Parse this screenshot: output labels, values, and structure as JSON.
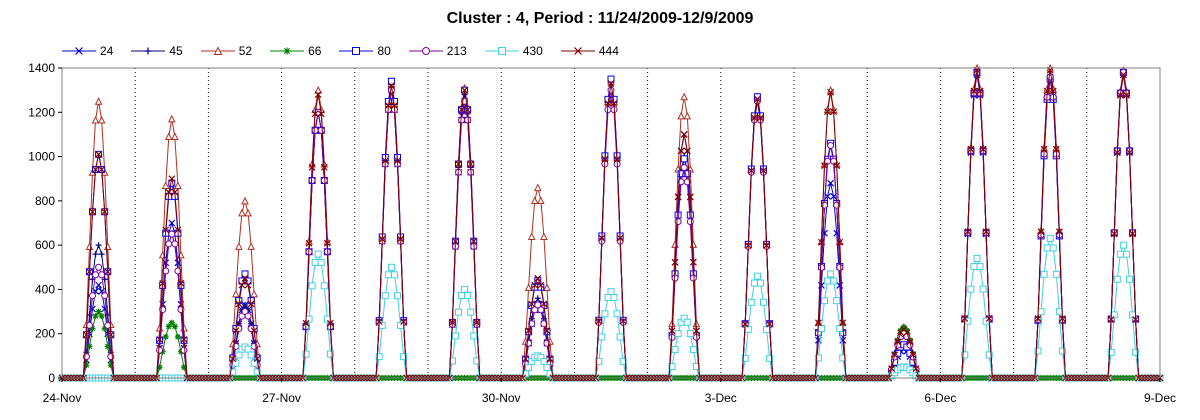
{
  "chart_data": {
    "type": "line",
    "title": "Cluster : 4, Period : 11/24/2009-12/9/2009",
    "xlabel": "",
    "ylabel": "",
    "ylim": [
      0,
      1400
    ],
    "yticks": [
      0,
      200,
      400,
      600,
      800,
      1000,
      1200,
      1400
    ],
    "x_range": [
      "2009-11-24",
      "2009-12-09"
    ],
    "xtick_labels": [
      "24-Nov",
      "27-Nov",
      "30-Nov",
      "3-Dec",
      "6-Dec",
      "9-Dec"
    ],
    "xtick_dates": [
      "2009-11-24",
      "2009-11-27",
      "2009-11-30",
      "2009-12-03",
      "2009-12-06",
      "2009-12-09"
    ],
    "grid": "dotted vertical lines at midnight of each day",
    "legend": "top-left, horizontal",
    "days": [
      "2009-11-24",
      "2009-11-25",
      "2009-11-26",
      "2009-11-27",
      "2009-11-28",
      "2009-11-29",
      "2009-11-30",
      "2009-12-01",
      "2009-12-02",
      "2009-12-03",
      "2009-12-04",
      "2009-12-05",
      "2009-12-06",
      "2009-12-07",
      "2009-12-08"
    ],
    "series": [
      {
        "name": "24",
        "color": "#0000cc",
        "marker": "x",
        "daily_peaks": [
          420,
          700,
          330,
          1200,
          1300,
          1250,
          330,
          1340,
          1100,
          1270,
          880,
          130,
          1370,
          1350,
          1370
        ]
      },
      {
        "name": "45",
        "color": "#000080",
        "marker": "plus",
        "daily_peaks": [
          600,
          650,
          330,
          1200,
          1300,
          1280,
          360,
          1330,
          1000,
          1250,
          1050,
          140,
          1380,
          1370,
          1380
        ]
      },
      {
        "name": "52",
        "color": "#b03020",
        "marker": "triangle",
        "daily_peaks": [
          1250,
          1170,
          800,
          1300,
          1330,
          1310,
          860,
          1340,
          1270,
          1270,
          1300,
          230,
          1400,
          1400,
          1390
        ]
      },
      {
        "name": "66",
        "color": "#008000",
        "marker": "star",
        "daily_peaks": [
          300,
          250,
          0,
          0,
          0,
          0,
          0,
          0,
          0,
          0,
          0,
          230,
          0,
          0,
          0
        ]
      },
      {
        "name": "80",
        "color": "#0000ff",
        "marker": "square",
        "daily_peaks": [
          1010,
          880,
          470,
          1200,
          1340,
          1300,
          440,
          1350,
          990,
          1270,
          1060,
          150,
          1380,
          1350,
          1380
        ]
      },
      {
        "name": "213",
        "color": "#8000a0",
        "marker": "circle",
        "daily_peaks": [
          500,
          650,
          300,
          1200,
          1300,
          1250,
          330,
          1300,
          950,
          1250,
          1050,
          200,
          1380,
          1360,
          1380
        ]
      },
      {
        "name": "430",
        "color": "#40d0e0",
        "marker": "square",
        "daily_peaks": [
          0,
          0,
          140,
          560,
          500,
          400,
          100,
          390,
          270,
          460,
          470,
          50,
          540,
          630,
          600
        ]
      },
      {
        "name": "444",
        "color": "#800000",
        "marker": "x",
        "daily_peaks": [
          1010,
          900,
          450,
          1280,
          1320,
          1300,
          450,
          1330,
          1100,
          1260,
          1290,
          220,
          1390,
          1390,
          1370
        ]
      }
    ]
  }
}
